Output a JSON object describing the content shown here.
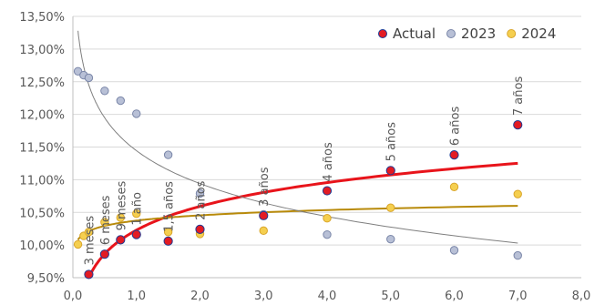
{
  "chart_data": {
    "type": "scatter",
    "title": "",
    "xlabel": "",
    "ylabel": "",
    "xlim": [
      0,
      8
    ],
    "ylim": [
      9.5,
      13.5
    ],
    "x_ticks": [
      0,
      1,
      2,
      3,
      4,
      5,
      6,
      7,
      8
    ],
    "x_tick_labels": [
      "0,0",
      "1,0",
      "2,0",
      "3,0",
      "4,0",
      "5,0",
      "6,0",
      "7,0",
      "8,0"
    ],
    "y_ticks": [
      9.5,
      10.0,
      10.5,
      11.0,
      11.5,
      12.0,
      12.5,
      13.0,
      13.5
    ],
    "y_tick_labels": [
      "9,50%",
      "10,00%",
      "10,50%",
      "11,00%",
      "11,50%",
      "12,00%",
      "12,50%",
      "13,00%",
      "13,50%"
    ],
    "grid": "horizontal",
    "legend_position": "top-right",
    "series": [
      {
        "name": "Actual",
        "color": "#e31b23",
        "edge_color": "#1f3a93",
        "points": [
          {
            "x": 0.25,
            "y": 9.55
          },
          {
            "x": 0.5,
            "y": 9.86
          },
          {
            "x": 0.75,
            "y": 10.08
          },
          {
            "x": 1.0,
            "y": 10.16
          },
          {
            "x": 1.5,
            "y": 10.06
          },
          {
            "x": 2.0,
            "y": 10.24
          },
          {
            "x": 3.0,
            "y": 10.45
          },
          {
            "x": 4.0,
            "y": 10.83
          },
          {
            "x": 5.0,
            "y": 11.14
          },
          {
            "x": 6.0,
            "y": 11.38
          },
          {
            "x": 7.0,
            "y": 11.84
          }
        ]
      },
      {
        "name": "2023",
        "color": "#b8c0d6",
        "edge_color": "#7a86a8",
        "points": [
          {
            "x": 0.08,
            "y": 12.66
          },
          {
            "x": 0.17,
            "y": 12.6
          },
          {
            "x": 0.25,
            "y": 12.56
          },
          {
            "x": 0.5,
            "y": 12.36
          },
          {
            "x": 0.75,
            "y": 12.21
          },
          {
            "x": 1.0,
            "y": 12.01
          },
          {
            "x": 1.5,
            "y": 11.38
          },
          {
            "x": 2.0,
            "y": 10.79
          },
          {
            "x": 3.0,
            "y": 10.47
          },
          {
            "x": 4.0,
            "y": 10.16
          },
          {
            "x": 5.0,
            "y": 10.09
          },
          {
            "x": 6.0,
            "y": 9.92
          },
          {
            "x": 7.0,
            "y": 9.84
          }
        ]
      },
      {
        "name": "2024",
        "color": "#f5cf4f",
        "edge_color": "#d9a52a",
        "points": [
          {
            "x": 0.08,
            "y": 10.01
          },
          {
            "x": 0.17,
            "y": 10.14
          },
          {
            "x": 0.25,
            "y": 10.2
          },
          {
            "x": 0.5,
            "y": 10.35
          },
          {
            "x": 0.75,
            "y": 10.42
          },
          {
            "x": 1.0,
            "y": 10.48
          },
          {
            "x": 1.5,
            "y": 10.2
          },
          {
            "x": 2.0,
            "y": 10.17
          },
          {
            "x": 3.0,
            "y": 10.22
          },
          {
            "x": 4.0,
            "y": 10.41
          },
          {
            "x": 5.0,
            "y": 10.57
          },
          {
            "x": 6.0,
            "y": 10.89
          },
          {
            "x": 7.0,
            "y": 10.78
          }
        ]
      }
    ],
    "trendlines": [
      {
        "series": "Actual",
        "kind": "logarithmic",
        "color": "#e8141b",
        "from_x": 0.25,
        "to_x": 7.0,
        "start_y": 9.5,
        "end_y": 11.25
      },
      {
        "series": "2024",
        "kind": "logarithmic",
        "color": "#b88a0a",
        "from_x": 0.08,
        "to_x": 7.0,
        "start_y": 10.08,
        "end_y": 10.6
      },
      {
        "series": "2023",
        "kind": "logarithmic",
        "color": "#7f7f7f",
        "from_x": 0.08,
        "to_x": 7.0,
        "start_y": 13.28,
        "end_y": 10.03
      }
    ],
    "annotations": [
      {
        "text": "3 meses",
        "x": 0.25,
        "y": 9.55
      },
      {
        "text": "6 meses",
        "x": 0.5,
        "y": 9.86
      },
      {
        "text": "9 meses",
        "x": 0.75,
        "y": 10.08
      },
      {
        "text": "1 año",
        "x": 1.0,
        "y": 10.16
      },
      {
        "text": "1,5 años",
        "x": 1.5,
        "y": 10.06
      },
      {
        "text": "2 años",
        "x": 2.0,
        "y": 10.24
      },
      {
        "text": "3 años",
        "x": 3.0,
        "y": 10.45
      },
      {
        "text": "4 años",
        "x": 4.0,
        "y": 10.83
      },
      {
        "text": "5 años",
        "x": 5.0,
        "y": 11.14
      },
      {
        "text": "6 años",
        "x": 6.0,
        "y": 11.38
      },
      {
        "text": "7 años",
        "x": 7.0,
        "y": 11.84
      }
    ]
  }
}
